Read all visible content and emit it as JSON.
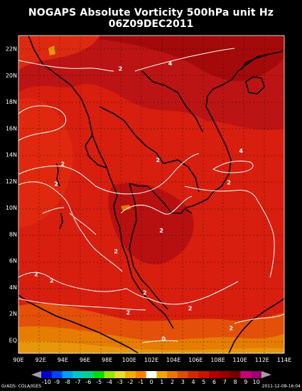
{
  "title": "NOGAPS Absolute Vorticity 500hPa unit Hz",
  "subtitle": "06Z09DEC2011",
  "lon_labels": [
    "90E",
    "92E",
    "94E",
    "96E",
    "98E",
    "100E",
    "102E",
    "104E",
    "106E",
    "108E",
    "110E",
    "112E",
    "114E"
  ],
  "lat_labels": [
    "EQ",
    "2N",
    "4N",
    "6N",
    "8N",
    "10N",
    "12N",
    "14N",
    "16N",
    "18N",
    "20N",
    "22N"
  ],
  "contour_labels": [
    {
      "text": "2",
      "lon": 99.2,
      "lat": 20.5
    },
    {
      "text": "4",
      "lon": 103.7,
      "lat": 20.9
    },
    {
      "text": "2",
      "lon": 94.0,
      "lat": 13.3
    },
    {
      "text": "2",
      "lon": 102.6,
      "lat": 13.6
    },
    {
      "text": "4",
      "lon": 110.1,
      "lat": 14.3
    },
    {
      "text": "2",
      "lon": 109.0,
      "lat": 11.9
    },
    {
      "text": "2",
      "lon": 93.4,
      "lat": 11.8
    },
    {
      "text": "2",
      "lon": 102.9,
      "lat": 8.3
    },
    {
      "text": "2",
      "lon": 98.8,
      "lat": 6.7
    },
    {
      "text": "2",
      "lon": 91.6,
      "lat": 5.0
    },
    {
      "text": "2",
      "lon": 93.0,
      "lat": 4.5
    },
    {
      "text": "2",
      "lon": 101.4,
      "lat": 3.6
    },
    {
      "text": "2",
      "lon": 105.5,
      "lat": 2.4
    },
    {
      "text": "2",
      "lon": 99.9,
      "lat": 2.1
    },
    {
      "text": "2",
      "lon": 109.2,
      "lat": 0.9
    },
    {
      "text": "0",
      "lon": 103.1,
      "lat": 0.1
    }
  ],
  "colorbar": {
    "labels": [
      "-10",
      "-9",
      "-8",
      "-7",
      "-6",
      "-5",
      "-4",
      "-3",
      "-2",
      "-1",
      "0",
      "1",
      "2",
      "3",
      "4",
      "5",
      "6",
      "7",
      "8",
      "9",
      "10"
    ],
    "colors": [
      "#0000c8",
      "#0046f0",
      "#00a0f0",
      "#00c8c8",
      "#00d28c",
      "#00dc00",
      "#96e600",
      "#e6dc32",
      "#f0af00",
      "#fa8200",
      "#ffffff",
      "#e6aa00",
      "#e67800",
      "#dc5000",
      "#d22800",
      "#c81400",
      "#b40000",
      "#960000",
      "#780000",
      "#c80078",
      "#a0006e"
    ]
  },
  "footer": {
    "left": "GrADS: COLA/IGES",
    "right": "2011-12-08-16:04"
  }
}
